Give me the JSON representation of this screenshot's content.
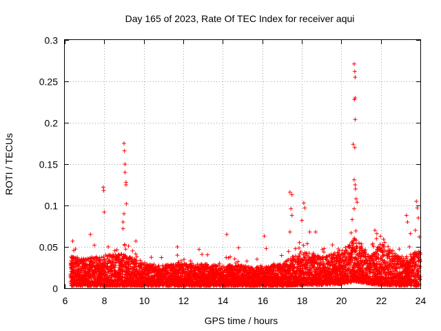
{
  "chart_data": {
    "type": "scatter",
    "title": "Day 165 of 2023, Rate Of TEC Index for receiver aqui",
    "xlabel": "GPS time / hours",
    "ylabel": "ROTI / TECUs",
    "xlim": [
      6,
      24
    ],
    "ylim": [
      0,
      0.3
    ],
    "x_ticks": [
      6,
      8,
      10,
      12,
      14,
      16,
      18,
      20,
      22,
      24
    ],
    "x_tick_labels": [
      "6",
      "8",
      "10",
      "12",
      "14",
      "16",
      "18",
      "20",
      "22",
      "24"
    ],
    "y_ticks": [
      0,
      0.05,
      0.1,
      0.15,
      0.2,
      0.25,
      0.3
    ],
    "y_tick_labels": [
      "0",
      "0.05",
      "0.1",
      "0.15",
      "0.2",
      "0.25",
      "0.3"
    ],
    "grid": true,
    "marker": "+",
    "series": [
      {
        "name": "ROTI",
        "color": "#ff0000",
        "peaks": [
          {
            "x": 6.4,
            "y": 0.057
          },
          {
            "x": 7.3,
            "y": 0.065
          },
          {
            "x": 7.5,
            "y": 0.052
          },
          {
            "x": 7.95,
            "y": 0.122
          },
          {
            "x": 7.97,
            "y": 0.118
          },
          {
            "x": 8.0,
            "y": 0.092
          },
          {
            "x": 8.2,
            "y": 0.05
          },
          {
            "x": 9.0,
            "y": 0.175
          },
          {
            "x": 9.02,
            "y": 0.166
          },
          {
            "x": 9.05,
            "y": 0.15
          },
          {
            "x": 9.05,
            "y": 0.14
          },
          {
            "x": 9.1,
            "y": 0.128
          },
          {
            "x": 9.1,
            "y": 0.125
          },
          {
            "x": 9.12,
            "y": 0.102
          },
          {
            "x": 9.0,
            "y": 0.09
          },
          {
            "x": 8.95,
            "y": 0.08
          },
          {
            "x": 8.95,
            "y": 0.072
          },
          {
            "x": 9.6,
            "y": 0.057
          },
          {
            "x": 11.7,
            "y": 0.05
          },
          {
            "x": 12.8,
            "y": 0.047
          },
          {
            "x": 14.2,
            "y": 0.065
          },
          {
            "x": 14.8,
            "y": 0.049
          },
          {
            "x": 16.1,
            "y": 0.063
          },
          {
            "x": 16.2,
            "y": 0.048
          },
          {
            "x": 17.4,
            "y": 0.116
          },
          {
            "x": 17.5,
            "y": 0.113
          },
          {
            "x": 17.45,
            "y": 0.096
          },
          {
            "x": 17.5,
            "y": 0.088
          },
          {
            "x": 17.4,
            "y": 0.068
          },
          {
            "x": 18.1,
            "y": 0.103
          },
          {
            "x": 18.15,
            "y": 0.097
          },
          {
            "x": 18.0,
            "y": 0.082
          },
          {
            "x": 18.4,
            "y": 0.068
          },
          {
            "x": 18.7,
            "y": 0.068
          },
          {
            "x": 20.65,
            "y": 0.271
          },
          {
            "x": 20.68,
            "y": 0.262
          },
          {
            "x": 20.7,
            "y": 0.255
          },
          {
            "x": 20.7,
            "y": 0.23
          },
          {
            "x": 20.66,
            "y": 0.228
          },
          {
            "x": 20.7,
            "y": 0.204
          },
          {
            "x": 20.6,
            "y": 0.174
          },
          {
            "x": 20.68,
            "y": 0.17
          },
          {
            "x": 20.65,
            "y": 0.131
          },
          {
            "x": 20.7,
            "y": 0.125
          },
          {
            "x": 20.72,
            "y": 0.12
          },
          {
            "x": 20.75,
            "y": 0.108
          },
          {
            "x": 20.8,
            "y": 0.104
          },
          {
            "x": 20.65,
            "y": 0.096
          },
          {
            "x": 20.55,
            "y": 0.083
          },
          {
            "x": 21.7,
            "y": 0.07
          },
          {
            "x": 21.8,
            "y": 0.066
          },
          {
            "x": 23.3,
            "y": 0.088
          },
          {
            "x": 23.35,
            "y": 0.08
          },
          {
            "x": 23.8,
            "y": 0.105
          },
          {
            "x": 23.85,
            "y": 0.097
          },
          {
            "x": 23.9,
            "y": 0.085
          },
          {
            "x": 23.75,
            "y": 0.07
          },
          {
            "x": 23.5,
            "y": 0.066
          },
          {
            "x": 23.95,
            "y": 0.062
          }
        ],
        "noise_floor": [
          {
            "x": 6.3,
            "low": 0.003,
            "high": 0.04
          },
          {
            "x": 7.0,
            "low": 0.003,
            "high": 0.036
          },
          {
            "x": 8.0,
            "low": 0.003,
            "high": 0.04
          },
          {
            "x": 9.0,
            "low": 0.003,
            "high": 0.042
          },
          {
            "x": 10.0,
            "low": 0.003,
            "high": 0.03
          },
          {
            "x": 11.0,
            "low": 0.003,
            "high": 0.028
          },
          {
            "x": 12.0,
            "low": 0.003,
            "high": 0.03
          },
          {
            "x": 13.0,
            "low": 0.003,
            "high": 0.03
          },
          {
            "x": 14.0,
            "low": 0.003,
            "high": 0.028
          },
          {
            "x": 15.0,
            "low": 0.003,
            "high": 0.028
          },
          {
            "x": 16.0,
            "low": 0.003,
            "high": 0.025
          },
          {
            "x": 17.0,
            "low": 0.003,
            "high": 0.03
          },
          {
            "x": 18.0,
            "low": 0.004,
            "high": 0.045
          },
          {
            "x": 19.0,
            "low": 0.004,
            "high": 0.038
          },
          {
            "x": 20.0,
            "low": 0.005,
            "high": 0.045
          },
          {
            "x": 20.7,
            "low": 0.008,
            "high": 0.06
          },
          {
            "x": 21.5,
            "low": 0.005,
            "high": 0.04
          },
          {
            "x": 22.0,
            "low": 0.004,
            "high": 0.055
          },
          {
            "x": 23.0,
            "low": 0.003,
            "high": 0.038
          },
          {
            "x": 24.0,
            "low": 0.003,
            "high": 0.045
          }
        ]
      }
    ]
  }
}
